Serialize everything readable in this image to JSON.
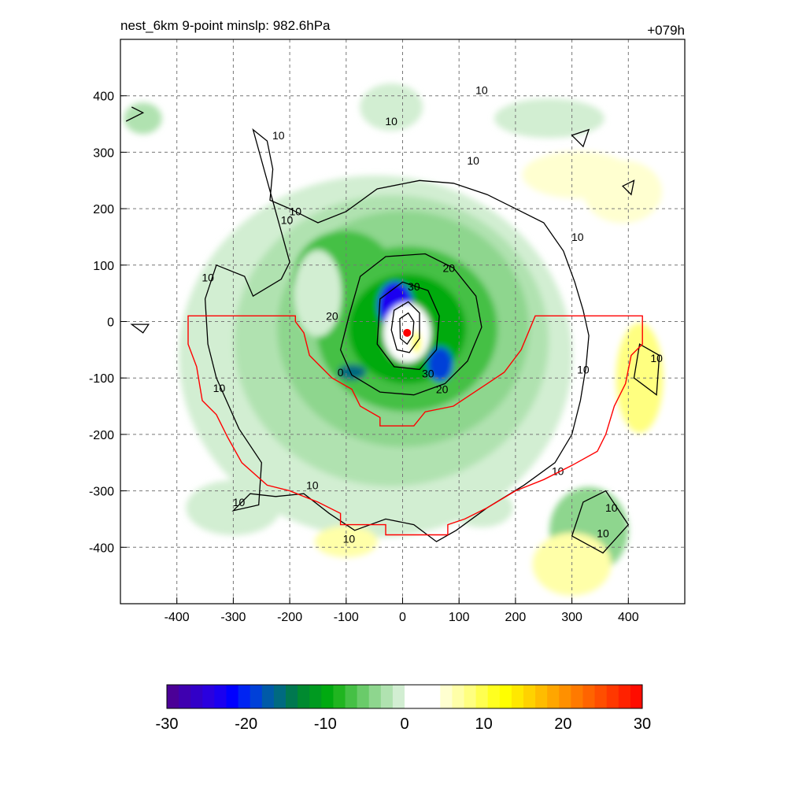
{
  "chart_data": {
    "type": "heatmap",
    "title_left": "nest_6km  9-point minslp: 982.6hPa",
    "title_right": "+079h",
    "xlim": [
      -500,
      500
    ],
    "ylim": [
      -500,
      500
    ],
    "x_ticks": [
      -400,
      -300,
      -200,
      -100,
      0,
      100,
      200,
      300,
      400
    ],
    "x_tick_labels": [
      "-400",
      "-300",
      "-200",
      "-100",
      "0",
      "100",
      "200",
      "300",
      "400"
    ],
    "y_ticks": [
      400,
      300,
      200,
      100,
      0,
      -100,
      -200,
      -300,
      -400
    ],
    "y_tick_labels": [
      "400",
      "300",
      "200",
      "100",
      "0",
      "-100",
      "-200",
      "-300",
      "-400"
    ],
    "grid": true,
    "colorbar": {
      "range": [
        -30,
        30
      ],
      "tick_values": [
        -30,
        -20,
        -10,
        0,
        10,
        20,
        30
      ],
      "tick_labels": [
        "-30",
        "-20",
        "-10",
        "0",
        "10",
        "20",
        "30"
      ],
      "colors": [
        "#4b0097",
        "#3f00b0",
        "#3200c8",
        "#2a00df",
        "#1a00f0",
        "#0000ff",
        "#0024f2",
        "#0040d8",
        "#005aa8",
        "#006a80",
        "#007850",
        "#008a30",
        "#009a20",
        "#00aa10",
        "#20b520",
        "#45c045",
        "#6acb6a",
        "#8ed68e",
        "#b0e2b0",
        "#d2eed2",
        "#ffffff",
        "#ffffff",
        "#ffffff",
        "#ffffd0",
        "#ffffa8",
        "#ffff80",
        "#ffff50",
        "#ffff20",
        "#ffff00",
        "#ffe800",
        "#ffd200",
        "#ffbc00",
        "#ffa600",
        "#ff9000",
        "#ff7a00",
        "#ff6400",
        "#ff4e00",
        "#ff3800",
        "#ff2200",
        "#ff0c00"
      ]
    },
    "contour_levels": [
      "10",
      "20",
      "30"
    ],
    "contour_labels": [
      {
        "text": "10",
        "x": -220,
        "y": 330
      },
      {
        "text": "10",
        "x": -190,
        "y": 195
      },
      {
        "text": "10",
        "x": -205,
        "y": 180
      },
      {
        "text": "10",
        "x": -345,
        "y": 78
      },
      {
        "text": "10",
        "x": -325,
        "y": -118
      },
      {
        "text": "10",
        "x": -290,
        "y": -320
      },
      {
        "text": "10",
        "x": -160,
        "y": -290
      },
      {
        "text": "10",
        "x": -95,
        "y": -385
      },
      {
        "text": "10",
        "x": -20,
        "y": 355
      },
      {
        "text": "10",
        "x": 140,
        "y": 410
      },
      {
        "text": "10",
        "x": 125,
        "y": 285
      },
      {
        "text": "10",
        "x": 310,
        "y": 150
      },
      {
        "text": "10",
        "x": 320,
        "y": -85
      },
      {
        "text": "10",
        "x": 450,
        "y": -65
      },
      {
        "text": "10",
        "x": 275,
        "y": -265
      },
      {
        "text": "10",
        "x": 370,
        "y": -330
      },
      {
        "text": "10",
        "x": 355,
        "y": -375
      },
      {
        "text": "20",
        "x": 82,
        "y": 95
      },
      {
        "text": "20",
        "x": -125,
        "y": 10
      },
      {
        "text": "20",
        "x": 70,
        "y": -120
      },
      {
        "text": "30",
        "x": 20,
        "y": 62
      },
      {
        "text": "30",
        "x": 45,
        "y": -92
      },
      {
        "text": "0",
        "x": -110,
        "y": -90
      }
    ],
    "storm_center": {
      "x": 8,
      "y": -20
    }
  }
}
